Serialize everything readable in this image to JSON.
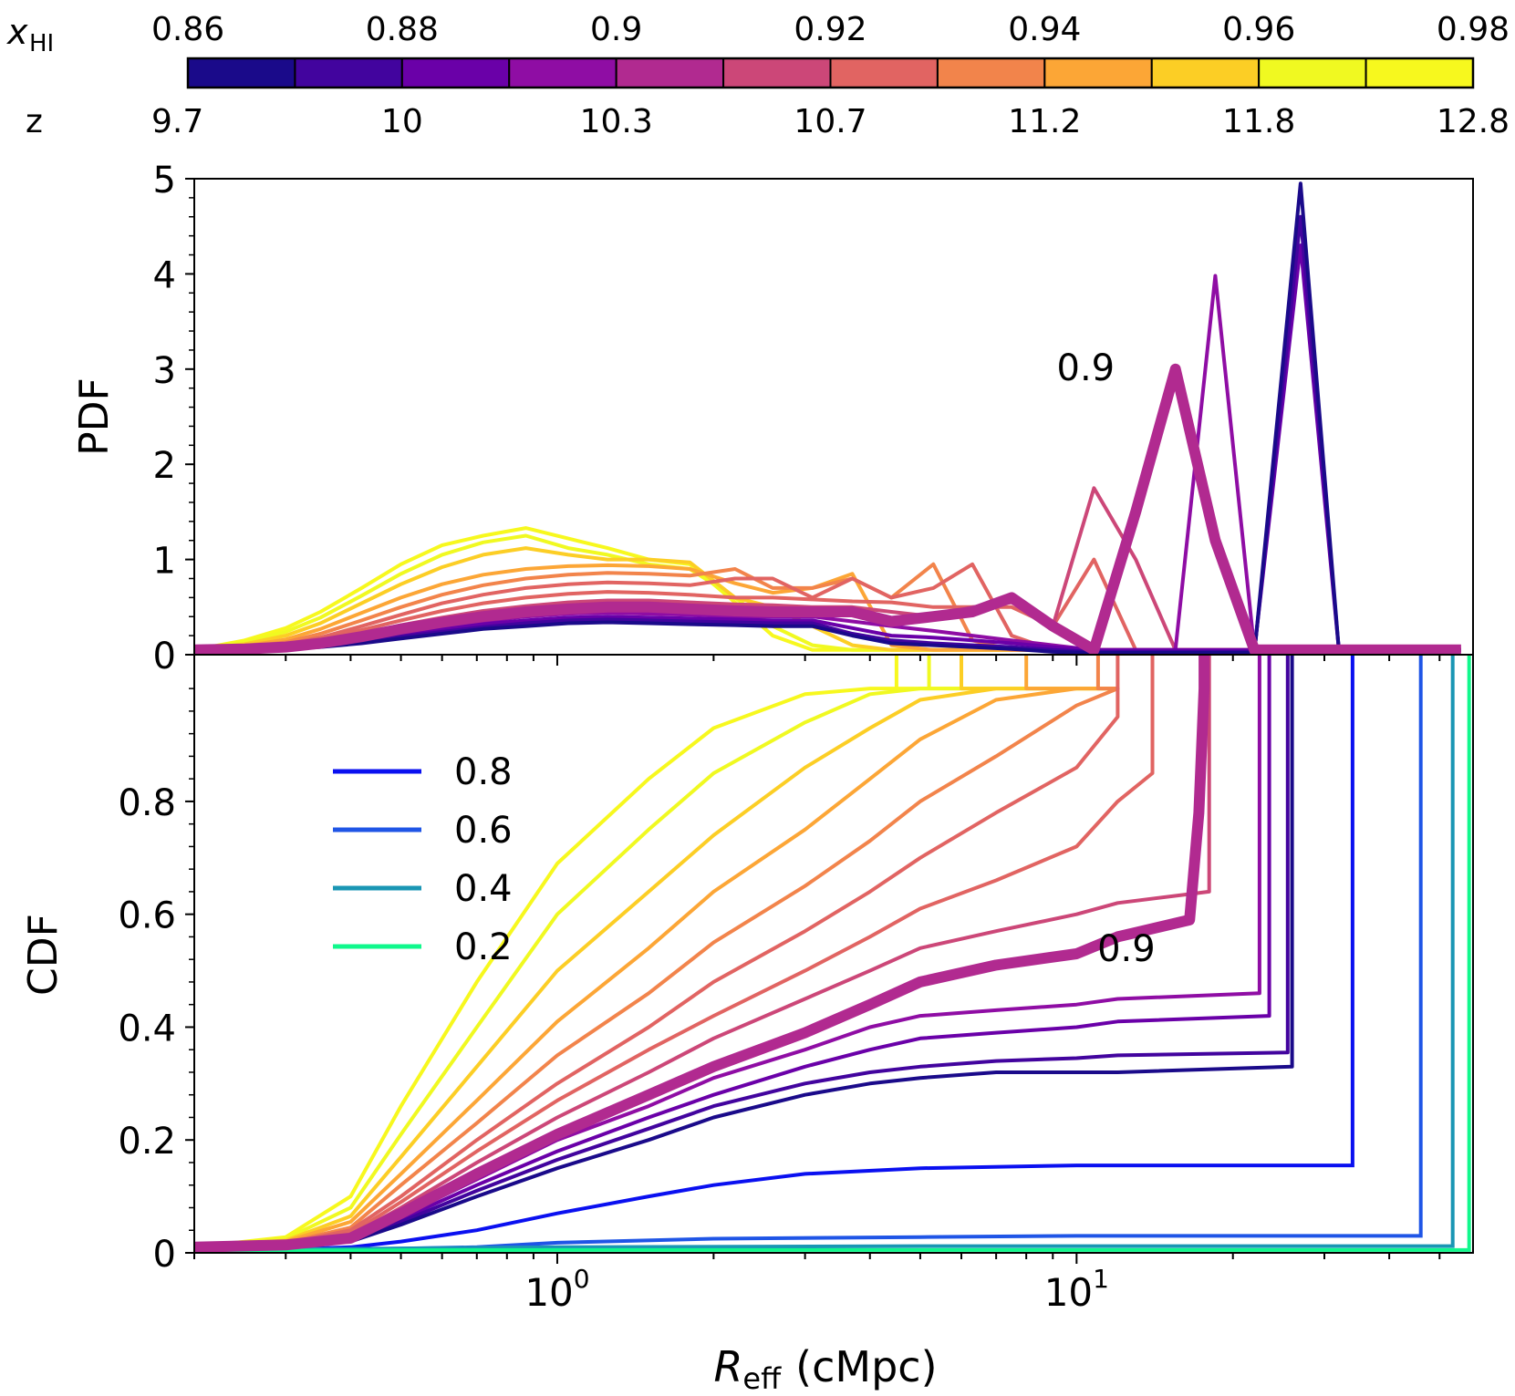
{
  "colorbar": {
    "xhi_label_main": "x",
    "xhi_label_sub": "HI",
    "xhi_range": [
      0.855,
      0.985
    ],
    "xhi_ticks": [
      "0.86",
      "0.88",
      "0.9",
      "0.92",
      "0.94",
      "0.96",
      "0.98"
    ],
    "z_label": "z",
    "z_ticks": [
      "9.7",
      "10",
      "10.3",
      "10.7",
      "11.2",
      "11.8",
      "12.8"
    ],
    "n_bins": 12,
    "colors": [
      "#1a0a8a",
      "#42049e",
      "#6a00a8",
      "#8f0da4",
      "#b12a90",
      "#cc4778",
      "#e16462",
      "#f2844b",
      "#fca636",
      "#fcce25",
      "#f0f921",
      "#f7f81e"
    ]
  },
  "chart_data": [
    {
      "type": "line",
      "panel": "top",
      "ylabel": "PDF",
      "xscale": "log",
      "xlim": [
        0.2,
        58
      ],
      "ylim": [
        0,
        5
      ],
      "yticks": [
        "0",
        "1",
        "2",
        "3",
        "4",
        "5"
      ],
      "annotation": "0.9",
      "annotation_at": {
        "x": 10,
        "y": 3.0
      },
      "x": [
        0.2,
        0.25,
        0.3,
        0.35,
        0.42,
        0.5,
        0.6,
        0.72,
        0.87,
        1.05,
        1.25,
        1.5,
        1.8,
        2.2,
        2.6,
        3.1,
        3.7,
        4.4,
        5.3,
        6.3,
        7.5,
        9,
        10.8,
        13,
        15.5,
        18.5,
        22,
        27,
        32,
        38,
        45,
        55
      ],
      "series": [
        {
          "xhi": 0.86,
          "width": 4,
          "values": [
            0.05,
            0.05,
            0.06,
            0.08,
            0.12,
            0.17,
            0.22,
            0.27,
            0.3,
            0.33,
            0.34,
            0.33,
            0.32,
            0.31,
            0.3,
            0.3,
            0.2,
            0.12,
            0.1,
            0.08,
            0.06,
            0.03,
            0.02,
            0.02,
            0.02,
            0.02,
            0.02,
            4.95,
            0.05,
            0.05,
            0.05,
            0.05
          ]
        },
        {
          "xhi": 0.87,
          "width": 4,
          "values": [
            0.05,
            0.05,
            0.07,
            0.09,
            0.14,
            0.19,
            0.24,
            0.29,
            0.33,
            0.36,
            0.37,
            0.36,
            0.35,
            0.34,
            0.33,
            0.33,
            0.22,
            0.15,
            0.12,
            0.1,
            0.08,
            0.05,
            0.03,
            0.03,
            0.03,
            0.03,
            0.03,
            4.6,
            0.05,
            0.05,
            0.05,
            0.05
          ]
        },
        {
          "xhi": 0.88,
          "width": 4,
          "values": [
            0.05,
            0.06,
            0.07,
            0.1,
            0.16,
            0.21,
            0.27,
            0.32,
            0.36,
            0.39,
            0.4,
            0.39,
            0.38,
            0.37,
            0.36,
            0.36,
            0.28,
            0.2,
            0.18,
            0.15,
            0.12,
            0.08,
            0.05,
            0.05,
            0.05,
            0.05,
            0.05,
            4.3,
            0.05,
            0.05,
            0.05,
            0.05
          ]
        },
        {
          "xhi": 0.89,
          "width": 4,
          "values": [
            0.05,
            0.06,
            0.08,
            0.11,
            0.17,
            0.23,
            0.3,
            0.35,
            0.4,
            0.43,
            0.44,
            0.43,
            0.42,
            0.4,
            0.4,
            0.4,
            0.35,
            0.3,
            0.25,
            0.2,
            0.15,
            0.1,
            0.05,
            0.05,
            0.05,
            3.98,
            0.05,
            0.05,
            0.05,
            0.05,
            0.05,
            0.05
          ]
        },
        {
          "xhi": 0.9,
          "width": 12,
          "values": [
            0.05,
            0.06,
            0.08,
            0.12,
            0.19,
            0.27,
            0.34,
            0.4,
            0.45,
            0.48,
            0.5,
            0.5,
            0.48,
            0.46,
            0.45,
            0.45,
            0.45,
            0.35,
            0.4,
            0.45,
            0.6,
            0.3,
            0.05,
            1.5,
            3.0,
            1.2,
            0.05,
            0.05,
            0.05,
            0.05,
            0.05,
            0.05
          ]
        },
        {
          "xhi": 0.91,
          "width": 4,
          "values": [
            0.05,
            0.06,
            0.09,
            0.14,
            0.22,
            0.31,
            0.39,
            0.46,
            0.51,
            0.55,
            0.57,
            0.57,
            0.55,
            0.53,
            0.52,
            0.5,
            0.5,
            0.45,
            0.4,
            0.5,
            0.55,
            0.3,
            1.75,
            1.0,
            0.05,
            0.05,
            0.05,
            0.05,
            0.05,
            0.05,
            0.05,
            0.05
          ]
        },
        {
          "xhi": 0.92,
          "width": 4,
          "values": [
            0.05,
            0.07,
            0.1,
            0.16,
            0.26,
            0.36,
            0.46,
            0.54,
            0.6,
            0.64,
            0.66,
            0.65,
            0.63,
            0.6,
            0.6,
            0.58,
            0.56,
            0.55,
            0.5,
            0.5,
            0.5,
            0.3,
            1.0,
            0.05,
            0.05,
            0.05,
            0.05,
            0.05,
            0.05,
            0.05,
            0.05,
            0.05
          ]
        },
        {
          "xhi": 0.93,
          "width": 4,
          "values": [
            0.05,
            0.07,
            0.11,
            0.18,
            0.3,
            0.42,
            0.54,
            0.63,
            0.7,
            0.74,
            0.76,
            0.75,
            0.73,
            0.8,
            0.8,
            0.6,
            0.8,
            0.6,
            0.7,
            0.95,
            0.2,
            0.05,
            0.05,
            0.05,
            0.05,
            0.05,
            0.05,
            0.05,
            0.05,
            0.05,
            0.05,
            0.05
          ]
        },
        {
          "xhi": 0.94,
          "width": 4,
          "values": [
            0.05,
            0.08,
            0.13,
            0.22,
            0.36,
            0.5,
            0.63,
            0.73,
            0.8,
            0.84,
            0.86,
            0.85,
            0.83,
            0.9,
            0.7,
            0.7,
            0.8,
            0.6,
            0.95,
            0.15,
            0.05,
            0.05,
            0.05,
            0.05,
            0.05,
            0.05,
            0.05,
            0.05,
            0.05,
            0.05,
            0.05,
            0.05
          ]
        },
        {
          "xhi": 0.95,
          "width": 4,
          "values": [
            0.05,
            0.09,
            0.16,
            0.27,
            0.44,
            0.6,
            0.74,
            0.84,
            0.9,
            0.93,
            0.94,
            0.93,
            0.9,
            0.75,
            0.65,
            0.7,
            0.85,
            0.1,
            0.05,
            0.05,
            0.05,
            0.05,
            0.05,
            0.05,
            0.05,
            0.05,
            0.05,
            0.05,
            0.05,
            0.05,
            0.05,
            0.05
          ]
        },
        {
          "xhi": 0.96,
          "width": 4,
          "values": [
            0.05,
            0.11,
            0.2,
            0.33,
            0.54,
            0.74,
            0.92,
            1.05,
            1.12,
            1.05,
            1.0,
            1.0,
            0.97,
            0.6,
            0.5,
            0.3,
            0.1,
            0.05,
            0.05,
            0.05,
            0.05,
            0.05,
            0.05,
            0.05,
            0.05,
            0.05,
            0.05,
            0.05,
            0.05,
            0.05,
            0.05,
            0.05
          ]
        },
        {
          "xhi": 0.97,
          "width": 4,
          "values": [
            0.05,
            0.13,
            0.24,
            0.39,
            0.62,
            0.85,
            1.05,
            1.18,
            1.25,
            1.12,
            1.05,
            0.95,
            0.9,
            0.6,
            0.3,
            0.1,
            0.05,
            0.05,
            0.05,
            0.05,
            0.05,
            0.05,
            0.05,
            0.05,
            0.05,
            0.05,
            0.05,
            0.05,
            0.05,
            0.05,
            0.05,
            0.05
          ]
        },
        {
          "xhi": 0.98,
          "width": 4,
          "values": [
            0.05,
            0.15,
            0.28,
            0.45,
            0.7,
            0.95,
            1.15,
            1.25,
            1.33,
            1.22,
            1.12,
            1.0,
            0.95,
            0.55,
            0.2,
            0.05,
            0.05,
            0.05,
            0.05,
            0.05,
            0.05,
            0.05,
            0.05,
            0.05,
            0.05,
            0.05,
            0.05,
            0.05,
            0.05,
            0.05,
            0.05,
            0.05
          ]
        }
      ]
    },
    {
      "type": "line",
      "panel": "bottom",
      "ylabel": "CDF",
      "xlabel_main": "R",
      "xlabel_sub": "eff",
      "xlabel_unit": "(cMpc)",
      "xscale": "log",
      "xlim": [
        0.2,
        58
      ],
      "ylim": [
        0,
        1
      ],
      "yticks": [
        "0",
        "0.2",
        "0.4",
        "0.6",
        "0.8"
      ],
      "xticks": [
        {
          "base": "10",
          "exp": "0",
          "value": 1
        },
        {
          "base": "10",
          "exp": "1",
          "value": 10
        }
      ],
      "annotation": "0.9",
      "annotation_at": {
        "x": 11.5,
        "y": 0.54
      },
      "x": [
        0.2,
        0.3,
        0.4,
        0.5,
        0.7,
        1,
        1.5,
        2,
        3,
        4,
        5,
        7,
        10,
        12
      ],
      "series": [
        {
          "xhi": 0.86,
          "width": 4,
          "values": [
            0.01,
            0.012,
            0.02,
            0.05,
            0.1,
            0.15,
            0.2,
            0.24,
            0.28,
            0.3,
            0.31,
            0.32,
            0.32,
            0.32
          ],
          "plateau": 0.33,
          "jump_x": 26
        },
        {
          "xhi": 0.87,
          "width": 4,
          "values": [
            0.01,
            0.012,
            0.02,
            0.055,
            0.11,
            0.165,
            0.22,
            0.26,
            0.3,
            0.32,
            0.33,
            0.34,
            0.345,
            0.35
          ],
          "plateau": 0.355,
          "jump_x": 25.5
        },
        {
          "xhi": 0.88,
          "width": 4,
          "values": [
            0.01,
            0.013,
            0.022,
            0.06,
            0.12,
            0.18,
            0.24,
            0.28,
            0.33,
            0.36,
            0.38,
            0.39,
            0.4,
            0.41
          ],
          "plateau": 0.42,
          "jump_x": 23.5
        },
        {
          "xhi": 0.89,
          "width": 4,
          "values": [
            0.01,
            0.013,
            0.024,
            0.065,
            0.13,
            0.2,
            0.26,
            0.31,
            0.36,
            0.4,
            0.42,
            0.43,
            0.44,
            0.45
          ],
          "plateau": 0.46,
          "jump_x": 22.5
        },
        {
          "xhi": 0.9,
          "width": 12,
          "values": [
            0.01,
            0.014,
            0.026,
            0.07,
            0.14,
            0.21,
            0.28,
            0.33,
            0.39,
            0.44,
            0.48,
            0.51,
            0.53,
            0.56
          ],
          "plateau": 0.59,
          "jump_x": 16.5,
          "tail": [
            [
              17.2,
              0.78
            ],
            [
              17.6,
              1.0
            ]
          ]
        },
        {
          "xhi": 0.91,
          "width": 4,
          "values": [
            0.01,
            0.015,
            0.03,
            0.08,
            0.16,
            0.24,
            0.32,
            0.38,
            0.45,
            0.5,
            0.54,
            0.57,
            0.6,
            0.62
          ],
          "plateau": 0.64,
          "jump_x": 18
        },
        {
          "xhi": 0.92,
          "width": 4,
          "values": [
            0.01,
            0.016,
            0.034,
            0.09,
            0.18,
            0.27,
            0.36,
            0.42,
            0.5,
            0.56,
            0.61,
            0.66,
            0.72,
            0.8
          ],
          "plateau": 0.85,
          "jump_x": 14
        },
        {
          "xhi": 0.93,
          "width": 4,
          "values": [
            0.01,
            0.017,
            0.04,
            0.1,
            0.2,
            0.3,
            0.4,
            0.48,
            0.57,
            0.64,
            0.7,
            0.78,
            0.86,
            0.95
          ],
          "plateau": 0.97,
          "jump_x": 12
        },
        {
          "xhi": 0.94,
          "width": 4,
          "values": [
            0.01,
            0.018,
            0.045,
            0.12,
            0.23,
            0.35,
            0.46,
            0.55,
            0.65,
            0.73,
            0.8,
            0.88,
            0.97,
            1.0
          ],
          "plateau": 1.0,
          "jump_x": 11
        },
        {
          "xhi": 0.95,
          "width": 4,
          "values": [
            0.01,
            0.02,
            0.055,
            0.14,
            0.27,
            0.41,
            0.54,
            0.64,
            0.75,
            0.84,
            0.91,
            0.98,
            1.0,
            1.0
          ],
          "plateau": 1.0,
          "jump_x": 8
        },
        {
          "xhi": 0.96,
          "width": 4,
          "values": [
            0.01,
            0.022,
            0.065,
            0.17,
            0.33,
            0.5,
            0.64,
            0.74,
            0.86,
            0.93,
            0.98,
            1.0,
            1.0,
            1.0
          ],
          "plateau": 1.0,
          "jump_x": 6
        },
        {
          "xhi": 0.97,
          "width": 4,
          "values": [
            0.01,
            0.025,
            0.08,
            0.21,
            0.4,
            0.6,
            0.75,
            0.85,
            0.94,
            0.99,
            1.0,
            1.0,
            1.0,
            1.0
          ],
          "plateau": 1.0,
          "jump_x": 5.2
        },
        {
          "xhi": 0.98,
          "width": 4,
          "values": [
            0.01,
            0.028,
            0.1,
            0.26,
            0.48,
            0.69,
            0.84,
            0.93,
            0.99,
            1.0,
            1.0,
            1.0,
            1.0,
            1.0
          ],
          "plateau": 1.0,
          "jump_x": 4.5
        }
      ],
      "legend": {
        "placement": "upper-left",
        "items": [
          {
            "label": "0.8",
            "color": "#0a10f0"
          },
          {
            "label": "0.6",
            "color": "#1f55e6"
          },
          {
            "label": "0.4",
            "color": "#1a96b4"
          },
          {
            "label": "0.2",
            "color": "#10f88c"
          }
        ]
      },
      "extra_series": [
        {
          "label": "0.8",
          "color": "#0a10f0",
          "x": [
            0.2,
            0.3,
            0.4,
            0.5,
            0.7,
            1,
            1.5,
            2,
            3,
            5,
            10,
            20,
            34
          ],
          "values": [
            0.005,
            0.006,
            0.01,
            0.02,
            0.04,
            0.07,
            0.1,
            0.12,
            0.14,
            0.15,
            0.155,
            0.155,
            0.155
          ],
          "jump_x": 34
        },
        {
          "label": "0.6",
          "color": "#1f55e6",
          "x": [
            0.2,
            0.4,
            0.7,
            1,
            2,
            5,
            10,
            20,
            46
          ],
          "values": [
            0.005,
            0.006,
            0.01,
            0.018,
            0.025,
            0.028,
            0.03,
            0.03,
            0.03
          ],
          "jump_x": 46
        },
        {
          "label": "0.4",
          "color": "#1a96b4",
          "x": [
            0.2,
            1,
            5,
            20,
            53
          ],
          "values": [
            0.005,
            0.01,
            0.012,
            0.012,
            0.012
          ],
          "jump_x": 53
        },
        {
          "label": "0.2",
          "color": "#10f88c",
          "x": [
            0.2,
            1,
            5,
            20,
            57
          ],
          "values": [
            0.004,
            0.005,
            0.005,
            0.005,
            0.005
          ],
          "jump_x": 57
        }
      ]
    }
  ]
}
